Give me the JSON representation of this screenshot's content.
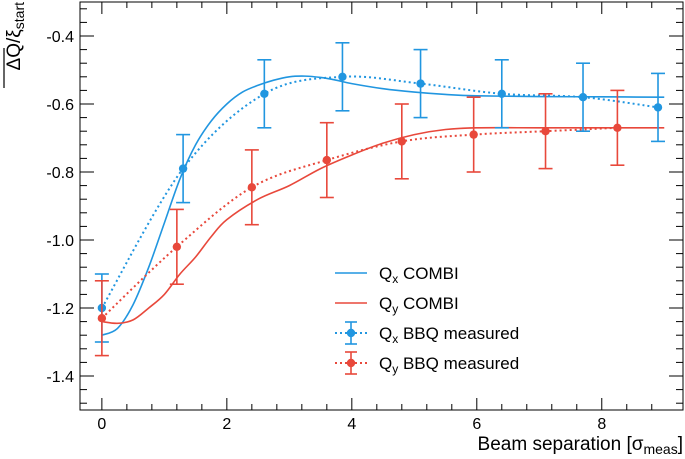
{
  "chart_data": {
    "type": "line",
    "title": "",
    "xlabel": {
      "prefix": "Beam separation [σ",
      "sub": "meas",
      "suffix": "]"
    },
    "ylabel": {
      "main": "ΔQ/ξ",
      "sub": "start"
    },
    "xlim": [
      -0.35,
      9.3
    ],
    "ylim": [
      -1.5,
      -0.3
    ],
    "xticks": [
      0,
      2,
      4,
      6,
      8
    ],
    "yticks": [
      -1.4,
      -1.2,
      -1.0,
      -0.8,
      -0.6,
      -0.4
    ],
    "ytick_labels": [
      "-1.4",
      "-1.2",
      "-1.0",
      "-0.8",
      "-0.6",
      "-0.4"
    ],
    "series": [
      {
        "id": "qx-combi",
        "label_main": "Q",
        "label_sub": "x",
        "label_rest": " COMBI",
        "style": "solid",
        "color": "#2196e0",
        "markers": false,
        "x": [
          0,
          0.25,
          0.5,
          0.75,
          1.0,
          1.25,
          1.5,
          1.75,
          2.0,
          2.25,
          2.5,
          2.75,
          3.0,
          3.25,
          3.5,
          3.75,
          4.0,
          4.5,
          5.0,
          5.5,
          6.0,
          7.0,
          8.0,
          9.0
        ],
        "y": [
          -1.28,
          -1.26,
          -1.19,
          -1.08,
          -0.95,
          -0.82,
          -0.72,
          -0.65,
          -0.6,
          -0.565,
          -0.545,
          -0.53,
          -0.52,
          -0.518,
          -0.522,
          -0.53,
          -0.54,
          -0.555,
          -0.565,
          -0.572,
          -0.576,
          -0.578,
          -0.579,
          -0.58
        ]
      },
      {
        "id": "qy-combi",
        "label_main": "Q",
        "label_sub": "y",
        "label_rest": " COMBI",
        "style": "solid",
        "color": "#e8483b",
        "markers": false,
        "x": [
          0,
          0.25,
          0.5,
          0.75,
          1.0,
          1.25,
          1.5,
          1.75,
          2.0,
          2.5,
          3.0,
          3.5,
          4.0,
          4.5,
          5.0,
          5.5,
          6.0,
          7.0,
          8.0,
          9.0
        ],
        "y": [
          -1.24,
          -1.245,
          -1.235,
          -1.2,
          -1.16,
          -1.1,
          -1.05,
          -0.99,
          -0.94,
          -0.88,
          -0.84,
          -0.79,
          -0.75,
          -0.715,
          -0.69,
          -0.675,
          -0.67,
          -0.67,
          -0.67,
          -0.67
        ]
      },
      {
        "id": "qx-bbq",
        "label_main": "Q",
        "label_sub": "x",
        "label_rest": " BBQ measured",
        "style": "dotted",
        "color": "#2196e0",
        "markers": true,
        "x": [
          0,
          1.3,
          2.6,
          3.85,
          5.1,
          6.4,
          7.7,
          8.9
        ],
        "y": [
          -1.2,
          -0.79,
          -0.57,
          -0.52,
          -0.54,
          -0.57,
          -0.58,
          -0.61
        ],
        "err": [
          0.1,
          0.1,
          0.1,
          0.1,
          0.1,
          0.1,
          0.1,
          0.1
        ]
      },
      {
        "id": "qy-bbq",
        "label_main": "Q",
        "label_sub": "y",
        "label_rest": " BBQ measured",
        "style": "dotted",
        "color": "#e8483b",
        "markers": true,
        "x": [
          0,
          1.2,
          2.4,
          3.6,
          4.8,
          5.95,
          7.1,
          8.25
        ],
        "y": [
          -1.23,
          -1.02,
          -0.845,
          -0.765,
          -0.71,
          -0.69,
          -0.68,
          -0.67
        ],
        "err": [
          0.11,
          0.11,
          0.11,
          0.11,
          0.11,
          0.11,
          0.11,
          0.11
        ]
      }
    ],
    "legend": {
      "position": "lower-right"
    }
  }
}
